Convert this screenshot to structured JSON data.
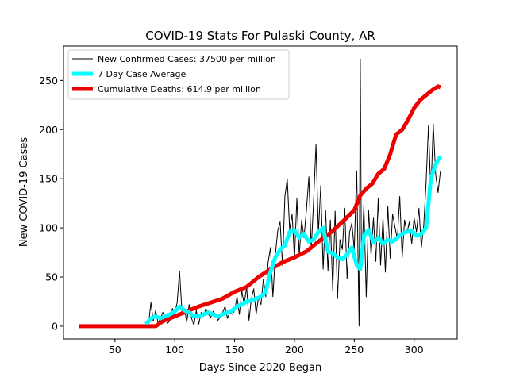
{
  "chart_data": {
    "type": "line",
    "title": "COVID-19 Stats For Pulaski County, AR",
    "xlabel": "Days Since 2020 Began",
    "ylabel": "New COVID-19 Cases",
    "xlim": [
      7,
      336
    ],
    "ylim": [
      -13,
      285
    ],
    "xticks": [
      50,
      100,
      150,
      200,
      250,
      300
    ],
    "yticks": [
      0,
      50,
      100,
      150,
      200,
      250
    ],
    "grid": false,
    "legend_position": "top-left",
    "series": [
      {
        "name": "New Confirmed Cases: 37500 per million",
        "color": "#000000",
        "x": [
          76,
          78,
          79,
          80,
          82,
          84,
          86,
          88,
          90,
          92,
          94,
          96,
          98,
          100,
          102,
          104,
          106,
          108,
          110,
          112,
          114,
          116,
          118,
          120,
          122,
          124,
          126,
          128,
          130,
          132,
          134,
          136,
          138,
          140,
          142,
          144,
          146,
          148,
          150,
          152,
          154,
          156,
          158,
          160,
          162,
          164,
          166,
          168,
          170,
          172,
          174,
          176,
          178,
          180,
          182,
          184,
          186,
          188,
          190,
          192,
          194,
          196,
          198,
          200,
          202,
          204,
          206,
          208,
          210,
          212,
          214,
          216,
          218,
          220,
          222,
          224,
          226,
          228,
          230,
          232,
          234,
          236,
          238,
          240,
          242,
          244,
          246,
          248,
          250,
          252,
          254,
          255,
          256,
          258,
          260,
          262,
          264,
          266,
          268,
          270,
          272,
          274,
          276,
          278,
          280,
          282,
          284,
          286,
          288,
          290,
          292,
          294,
          296,
          298,
          300,
          302,
          304,
          306,
          308,
          310,
          312,
          314,
          316,
          318,
          320,
          322
        ],
        "y": [
          3,
          1,
          12,
          24,
          5,
          16,
          3,
          8,
          14,
          10,
          3,
          6,
          18,
          14,
          24,
          56,
          14,
          18,
          4,
          22,
          8,
          1,
          16,
          2,
          14,
          10,
          18,
          12,
          9,
          15,
          12,
          6,
          9,
          14,
          20,
          8,
          14,
          12,
          16,
          30,
          12,
          36,
          22,
          40,
          6,
          28,
          38,
          12,
          30,
          22,
          48,
          30,
          65,
          80,
          30,
          72,
          97,
          106,
          62,
          132,
          150,
          98,
          114,
          68,
          130,
          72,
          108,
          90,
          118,
          152,
          78,
          128,
          185,
          95,
          143,
          58,
          118,
          56,
          108,
          36,
          117,
          28,
          88,
          78,
          120,
          48,
          95,
          105,
          78,
          158,
          0,
          272,
          57,
          124,
          30,
          118,
          72,
          110,
          66,
          130,
          62,
          110,
          55,
          122,
          69,
          114,
          101,
          88,
          132,
          70,
          108,
          95,
          106,
          84,
          110,
          96,
          120,
          80,
          102,
          146,
          204,
          134,
          206,
          154,
          136,
          158
        ]
      },
      {
        "name": "7 Day Case Average",
        "color": "#00ffff",
        "x": [
          76,
          80,
          84,
          88,
          92,
          96,
          100,
          104,
          108,
          112,
          116,
          120,
          124,
          128,
          132,
          136,
          140,
          144,
          148,
          152,
          156,
          160,
          164,
          168,
          172,
          176,
          180,
          184,
          188,
          192,
          196,
          200,
          204,
          208,
          212,
          216,
          220,
          224,
          228,
          232,
          236,
          240,
          244,
          248,
          252,
          255,
          258,
          262,
          266,
          270,
          274,
          278,
          282,
          286,
          290,
          294,
          298,
          302,
          306,
          310,
          314,
          318,
          322
        ],
        "y": [
          2,
          8,
          10,
          8,
          10,
          12,
          15,
          20,
          16,
          14,
          10,
          10,
          12,
          14,
          12,
          10,
          12,
          14,
          16,
          20,
          22,
          25,
          26,
          28,
          30,
          35,
          55,
          70,
          78,
          82,
          96,
          98,
          90,
          94,
          86,
          88,
          96,
          100,
          76,
          74,
          70,
          68,
          73,
          80,
          62,
          58,
          92,
          98,
          85,
          90,
          84,
          88,
          86,
          90,
          94,
          96,
          97,
          92,
          94,
          100,
          150,
          165,
          173
        ]
      },
      {
        "name": "Cumulative Deaths: 614.9 per million",
        "color": "#ee0000",
        "x": [
          20,
          40,
          60,
          80,
          84,
          90,
          100,
          110,
          120,
          130,
          140,
          150,
          160,
          170,
          180,
          190,
          200,
          210,
          220,
          230,
          240,
          250,
          255,
          260,
          265,
          270,
          275,
          280,
          285,
          290,
          295,
          300,
          305,
          310,
          315,
          320,
          322
        ],
        "y": [
          0,
          0,
          0,
          0,
          0,
          5,
          10,
          15,
          20,
          24,
          28,
          35,
          40,
          50,
          58,
          65,
          70,
          76,
          86,
          95,
          106,
          118,
          133,
          140,
          145,
          155,
          160,
          175,
          195,
          200,
          210,
          222,
          230,
          235,
          240,
          244,
          243
        ]
      }
    ]
  }
}
